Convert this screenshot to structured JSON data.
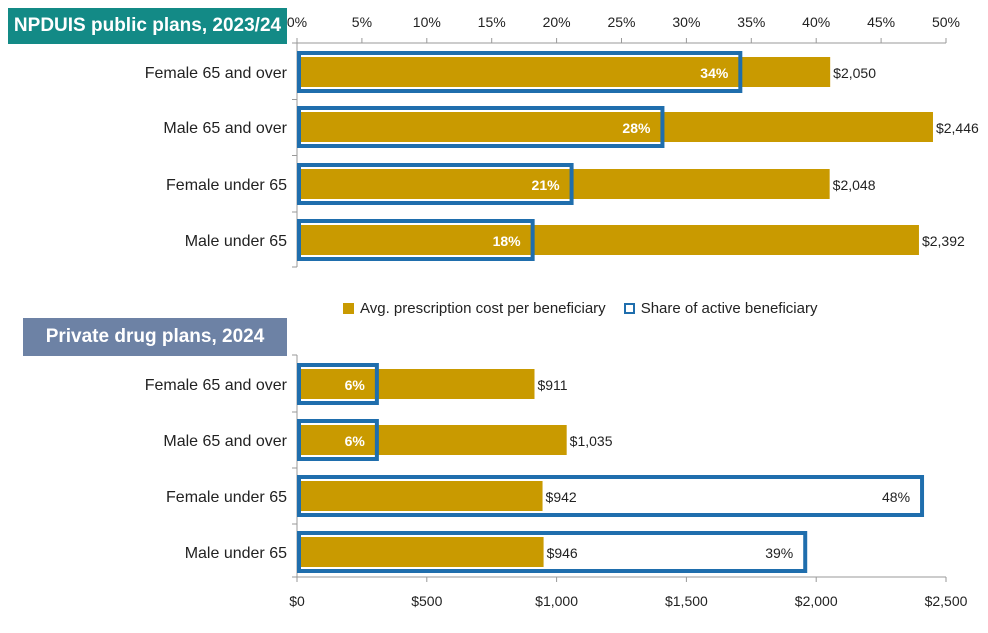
{
  "colors": {
    "cost_bar": "#C99A00",
    "share_outline": "#1F6EAD",
    "title1_bg": "#138A86",
    "title2_bg": "#6D82A5",
    "axis": "#999999"
  },
  "legend": {
    "cost_label": "Avg. prescription cost per beneficiary",
    "share_label": "Share of active beneficiary"
  },
  "chart_data": [
    {
      "type": "bar",
      "orientation": "horizontal",
      "title": "NPDUIS public plans, 2023/24",
      "categories": [
        "Female 65 and over",
        "Male 65 and over",
        "Female under 65",
        "Male under 65"
      ],
      "series": [
        {
          "name": "Avg. prescription cost per beneficiary",
          "values": [
            2050,
            2446,
            2048,
            2392
          ],
          "labels": [
            "$2,050",
            "$2,446",
            "$2,048",
            "$2,392"
          ]
        },
        {
          "name": "Share of active beneficiary",
          "values": [
            34,
            28,
            21,
            18
          ],
          "labels": [
            "34%",
            "28%",
            "21%",
            "18%"
          ]
        }
      ],
      "share_axis": {
        "position": "top",
        "range": [
          0,
          50
        ],
        "ticks": [
          "0%",
          "5%",
          "10%",
          "15%",
          "20%",
          "25%",
          "30%",
          "35%",
          "40%",
          "45%",
          "50%"
        ]
      },
      "cost_axis_range": [
        0,
        2500
      ]
    },
    {
      "type": "bar",
      "orientation": "horizontal",
      "title": "Private drug plans, 2024",
      "categories": [
        "Female 65 and over",
        "Male 65 and over",
        "Female under 65",
        "Male under 65"
      ],
      "series": [
        {
          "name": "Avg. prescription cost per beneficiary",
          "values": [
            911,
            1035,
            942,
            946
          ],
          "labels": [
            "$911",
            "$1,035",
            "$942",
            "$946"
          ]
        },
        {
          "name": "Share of active beneficiary",
          "values": [
            6,
            6,
            48,
            39
          ],
          "labels": [
            "6%",
            "6%",
            "48%",
            "39%"
          ]
        }
      ],
      "cost_axis": {
        "position": "bottom",
        "range": [
          0,
          2500
        ],
        "ticks": [
          "$0",
          "$500",
          "$1,000",
          "$1,500",
          "$2,000",
          "$2,500"
        ]
      },
      "share_axis_range": [
        0,
        50
      ]
    }
  ]
}
